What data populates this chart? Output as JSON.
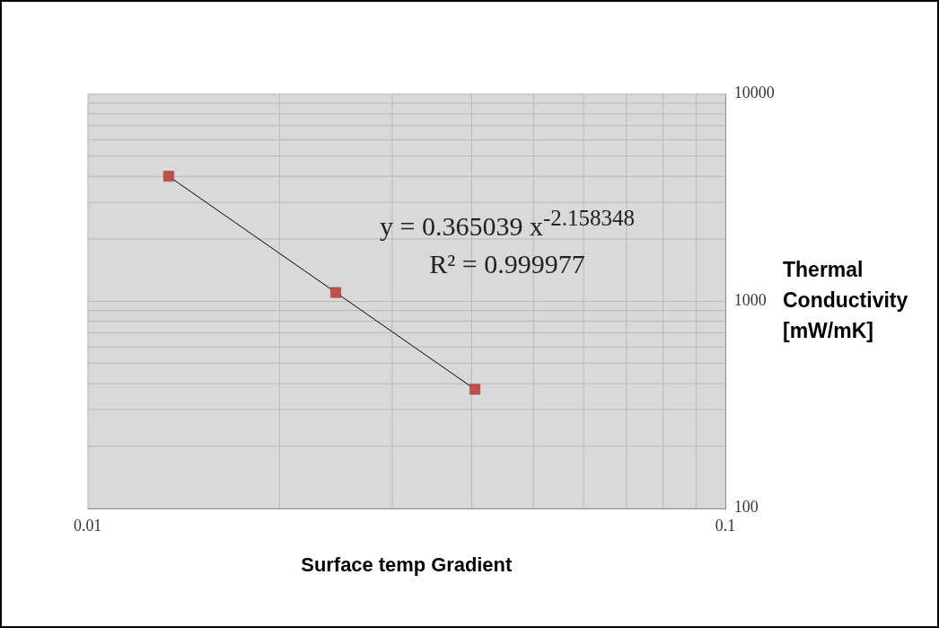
{
  "chart_data": {
    "type": "scatter",
    "xlabel": "Surface temp Gradient",
    "ylabel": "Thermal Conductivity [mW/mK]",
    "annotations": [
      "y = 0.365039 x$^{-2.158348}$",
      "R² = 0.999977"
    ],
    "series": [
      {
        "color": "#c0504d",
        "marker": "square",
        "x": [
          0.0134,
          0.0245,
          0.0405
        ],
        "values": [
          4000,
          1100,
          375
        ]
      },
      {
        "type": "line",
        "color": "#000000",
        "marker": "none",
        "x": [
          0.0134,
          0.0405
        ],
        "values": [
          4000,
          375
        ]
      }
    ],
    "xlim": [
      0.01,
      0.1
    ],
    "xticks": [
      0.01,
      {
        "value": 0.02,
        "label": null
      },
      {
        "value": 0.03,
        "label": null
      },
      {
        "value": 0.04,
        "label": null
      },
      {
        "value": 0.05,
        "label": null
      },
      {
        "value": 0.06,
        "label": null
      },
      {
        "value": 0.07,
        "label": null
      },
      {
        "value": 0.08,
        "label": null
      },
      {
        "value": 0.09,
        "label": null
      },
      0.1
    ],
    "ylim": [
      100,
      10000
    ],
    "yticks": [
      100,
      {
        "value": 200,
        "label": null
      },
      {
        "value": 300,
        "label": null
      },
      {
        "value": 400,
        "label": null
      },
      {
        "value": 500,
        "label": null
      },
      {
        "value": 600,
        "label": null
      },
      {
        "value": 700,
        "label": null
      },
      {
        "value": 800,
        "label": null
      },
      {
        "value": 900,
        "label": null
      },
      1000,
      {
        "value": 2000,
        "label": null
      },
      {
        "value": 3000,
        "label": null
      },
      {
        "value": 4000,
        "label": null
      },
      {
        "value": 5000,
        "label": null
      },
      {
        "value": 6000,
        "label": null
      },
      {
        "value": 7000,
        "label": null
      },
      {
        "value": 8000,
        "label": null
      },
      {
        "value": 9000,
        "label": null
      },
      10000
    ],
    "log": "xy",
    "grid": true,
    "legend": false
  }
}
